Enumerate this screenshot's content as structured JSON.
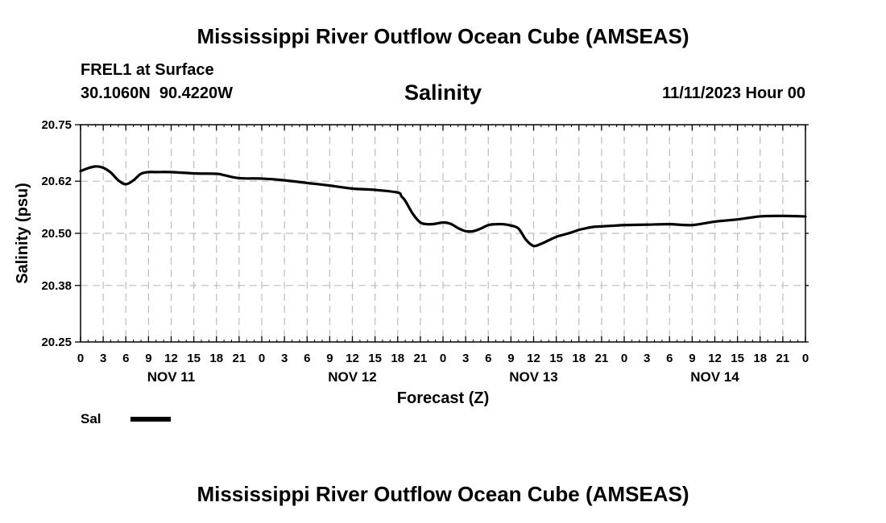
{
  "header": {
    "title": "Mississippi River Outflow Ocean Cube (AMSEAS)",
    "station": "FREL1 at Surface",
    "coords": "30.1060N  90.4220W",
    "date": "11/11/2023 Hour 00"
  },
  "footer": {
    "title": "Mississippi River Outflow Ocean Cube (AMSEAS)"
  },
  "chart_data": {
    "type": "line",
    "title": "Salinity",
    "xlabel": "Forecast (Z)",
    "ylabel": "Salinity (psu)",
    "ylim": [
      20.25,
      20.75
    ],
    "xlim": [
      0,
      96
    ],
    "grid": true,
    "y_ticks": [
      "20.25",
      "20.38",
      "20.50",
      "20.62",
      "20.75"
    ],
    "x_tick_labels": [
      "0",
      "3",
      "6",
      "9",
      "12",
      "15",
      "18",
      "21",
      "0",
      "3",
      "6",
      "9",
      "12",
      "15",
      "18",
      "21",
      "0",
      "3",
      "6",
      "9",
      "12",
      "15",
      "18",
      "21",
      "0",
      "3",
      "6",
      "9",
      "12",
      "15",
      "18",
      "21",
      "0"
    ],
    "day_labels": [
      {
        "label": "NOV 11",
        "hour": 12
      },
      {
        "label": "NOV 12",
        "hour": 36
      },
      {
        "label": "NOV 13",
        "hour": 60
      },
      {
        "label": "NOV 14",
        "hour": 84
      }
    ],
    "legend": {
      "label": "Sal",
      "placement": "bottom-left"
    },
    "series": [
      {
        "name": "Sal",
        "color": "#000000",
        "x": [
          0,
          1,
          2,
          3,
          4,
          5,
          6,
          7,
          8,
          9,
          10,
          12,
          15,
          18,
          19,
          21,
          24,
          27,
          30,
          33,
          36,
          39,
          42,
          42.5,
          43,
          44,
          45,
          46,
          47,
          48,
          49,
          50,
          51,
          52,
          53,
          54,
          55,
          56,
          57,
          58,
          59,
          60,
          61,
          62,
          63,
          64,
          65,
          66,
          67,
          68,
          69,
          70,
          71,
          72,
          75,
          78,
          81,
          84,
          87,
          90,
          93,
          96
        ],
        "y": [
          20.643,
          20.65,
          20.654,
          20.651,
          20.64,
          20.622,
          20.613,
          20.622,
          20.637,
          20.641,
          20.641,
          20.641,
          20.638,
          20.637,
          20.634,
          20.627,
          20.626,
          20.622,
          20.616,
          20.61,
          20.603,
          20.6,
          20.594,
          20.585,
          20.575,
          20.545,
          20.525,
          20.521,
          20.522,
          20.525,
          20.522,
          20.512,
          20.505,
          20.505,
          20.511,
          20.519,
          20.521,
          20.521,
          20.518,
          20.511,
          20.485,
          20.471,
          20.476,
          20.484,
          20.492,
          20.497,
          20.502,
          20.508,
          20.512,
          20.515,
          20.516,
          20.517,
          20.518,
          20.519,
          20.52,
          20.521,
          20.519,
          20.527,
          20.532,
          20.539,
          20.54,
          20.539
        ]
      }
    ]
  }
}
